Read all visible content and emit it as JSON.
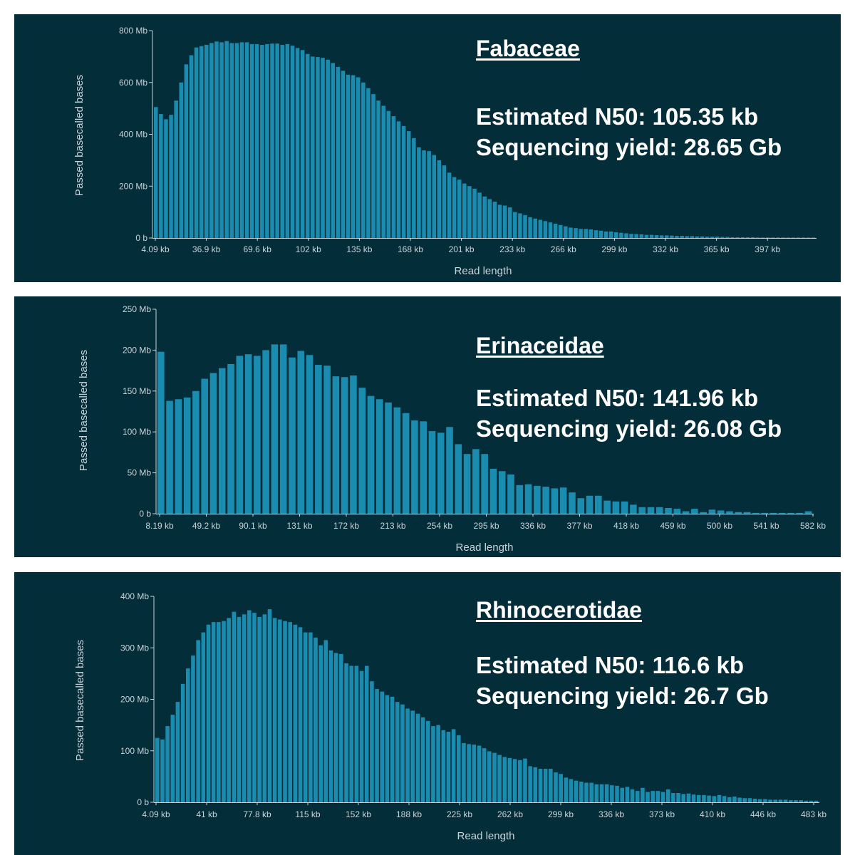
{
  "chart_data": [
    {
      "type": "bar",
      "family": "Fabaceae",
      "n50": "Estimated N50: 105.35 kb",
      "yield": "Sequencing yield: 28.65 Gb",
      "xlabel": "Read length",
      "ylabel": "Passed basecalled bases",
      "ylim": [
        0,
        800
      ],
      "y_ticks": [
        "0 b",
        "200 Mb",
        "400 Mb",
        "600 Mb",
        "800 Mb"
      ],
      "x_ticks": [
        "4.09 kb",
        "36.9 kb",
        "69.6 kb",
        "102 kb",
        "135 kb",
        "168 kb",
        "201 kb",
        "233 kb",
        "266 kb",
        "299 kb",
        "332 kb",
        "365 kb",
        "397 kb"
      ],
      "bar_color": "#1a8cb0",
      "values": [
        505,
        478,
        458,
        475,
        530,
        600,
        670,
        705,
        735,
        740,
        745,
        752,
        758,
        755,
        760,
        752,
        752,
        755,
        755,
        748,
        748,
        745,
        748,
        750,
        750,
        745,
        748,
        742,
        733,
        725,
        710,
        700,
        698,
        695,
        688,
        675,
        660,
        645,
        630,
        628,
        620,
        600,
        578,
        555,
        530,
        510,
        490,
        470,
        450,
        432,
        412,
        385,
        350,
        338,
        335,
        320,
        300,
        280,
        252,
        235,
        225,
        210,
        200,
        190,
        175,
        160,
        150,
        140,
        128,
        125,
        118,
        100,
        95,
        88,
        80,
        75,
        70,
        65,
        60,
        55,
        50,
        45,
        40,
        38,
        35,
        35,
        33,
        30,
        28,
        25,
        25,
        22,
        20,
        18,
        16,
        15,
        14,
        12,
        12,
        11,
        10,
        10,
        9,
        8,
        8,
        7,
        7,
        6,
        6,
        5,
        5,
        5,
        4,
        4,
        3,
        3,
        3,
        3,
        3,
        2,
        2,
        2,
        2,
        2,
        2,
        2,
        2,
        2,
        2,
        2,
        2
      ]
    },
    {
      "type": "bar",
      "family": "Erinaceidae",
      "n50": "Estimated N50: 141.96 kb",
      "yield": "Sequencing yield: 26.08 Gb",
      "xlabel": "Read length",
      "ylabel": "Passed basecalled bases",
      "ylim": [
        0,
        250
      ],
      "y_ticks": [
        "0 b",
        "50 Mb",
        "100 Mb",
        "150 Mb",
        "200 Mb",
        "250 Mb"
      ],
      "x_ticks": [
        "8.19 kb",
        "49.2 kb",
        "90.1 kb",
        "131 kb",
        "172 kb",
        "213 kb",
        "254 kb",
        "295 kb",
        "336 kb",
        "377 kb",
        "418 kb",
        "459 kb",
        "500 kb",
        "541 kb",
        "582 kb"
      ],
      "bar_color": "#1a8cb0",
      "values": [
        198,
        138,
        140,
        142,
        150,
        165,
        172,
        178,
        183,
        193,
        195,
        193,
        200,
        207,
        207,
        191,
        199,
        194,
        182,
        181,
        168,
        167,
        169,
        154,
        144,
        140,
        136,
        130,
        123,
        114,
        113,
        101,
        99,
        106,
        85,
        73,
        79,
        73,
        55,
        52,
        48,
        35,
        36,
        34,
        33,
        31,
        32,
        26,
        19,
        22,
        22,
        16,
        15,
        15,
        11,
        8,
        8,
        8,
        7,
        6,
        3,
        6,
        2,
        5,
        4,
        3,
        2,
        2,
        1,
        1,
        1,
        1,
        1,
        1,
        3
      ]
    },
    {
      "type": "bar",
      "family": "Rhinocerotidae",
      "n50": "Estimated N50: 116.6 kb",
      "yield": "Sequencing yield: 26.7 Gb",
      "xlabel": "Read length",
      "ylabel": "Passed basecalled bases",
      "ylim": [
        0,
        400
      ],
      "y_ticks": [
        "0 b",
        "100 Mb",
        "200 Mb",
        "300 Mb",
        "400 Mb"
      ],
      "x_ticks": [
        "4.09 kb",
        "41 kb",
        "77.8 kb",
        "115 kb",
        "152 kb",
        "188 kb",
        "225 kb",
        "262 kb",
        "299 kb",
        "336 kb",
        "373 kb",
        "410 kb",
        "446 kb",
        "483 kb"
      ],
      "bar_color": "#1a8cb0",
      "values": [
        125,
        122,
        148,
        170,
        195,
        230,
        260,
        285,
        315,
        330,
        345,
        350,
        350,
        352,
        358,
        370,
        360,
        365,
        373,
        368,
        360,
        365,
        375,
        358,
        355,
        352,
        350,
        345,
        340,
        330,
        330,
        320,
        305,
        315,
        295,
        290,
        288,
        270,
        265,
        265,
        255,
        265,
        235,
        220,
        215,
        208,
        205,
        195,
        190,
        182,
        178,
        172,
        165,
        158,
        148,
        150,
        140,
        137,
        142,
        130,
        115,
        113,
        112,
        110,
        105,
        99,
        96,
        92,
        88,
        86,
        84,
        82,
        85,
        70,
        68,
        65,
        65,
        65,
        58,
        55,
        48,
        45,
        42,
        40,
        38,
        38,
        35,
        35,
        35,
        33,
        32,
        28,
        30,
        25,
        22,
        28,
        20,
        22,
        22,
        20,
        25,
        18,
        18,
        16,
        17,
        15,
        14,
        14,
        13,
        12,
        14,
        12,
        10,
        11,
        9,
        8,
        8,
        7,
        6,
        6,
        5,
        5,
        5,
        5,
        4,
        4,
        4,
        3,
        3,
        3
      ]
    }
  ]
}
